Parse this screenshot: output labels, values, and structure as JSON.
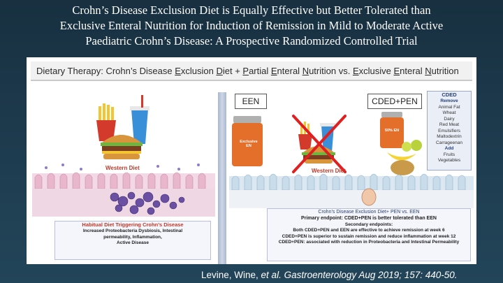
{
  "slide": {
    "title_lines": [
      "Crohn’s Disease Exclusion Diet is Equally Effective but Better Tolerated than",
      "Exclusive Enteral Nutrition for Induction of Remission in Mild to Moderate Active",
      "Paediatric Crohn’s Disease: A Prospective Randomized Controlled Trial"
    ],
    "citation_authors": "Levine, Wine, ",
    "citation_etal": "et al.",
    "citation_journal": " Gastroenterology Aug 2019; 157: 440-50."
  },
  "figure": {
    "header": {
      "p1": "Dietary Therapy: Crohn’s Disease ",
      "e": "E",
      "p2": "xclusion ",
      "d": "D",
      "p3": "iet + ",
      "pp": "P",
      "p4": "artial ",
      "e2": "E",
      "p5": "nteral ",
      "n": "N",
      "p6": "utrition vs. ",
      "e3": "E",
      "p7": "xclusive ",
      "e4": "E",
      "p8": "nteral ",
      "n2": "N",
      "p9": "utrition"
    },
    "western_diet_label": "Western Diet",
    "western_diet_label_crossed": "Western Diet",
    "een_label": "EEN",
    "cded_pen_label": "CDED+PEN",
    "formula_label": "Exclusive EN",
    "pen_jar_label": "50% EN",
    "cded_box": {
      "title": "CDED",
      "remove": "Remove",
      "remove_items": [
        "Animal Fat",
        "Wheat",
        "Dairy",
        "Red Meat",
        "Emulsifiers",
        "Maltodextrin",
        "Carrageenan"
      ],
      "add": "Add",
      "add_items": [
        "Fruits",
        "Vegetables"
      ]
    },
    "habitual_box": {
      "title": "Habitual Diet Triggering Crohn’s Disease",
      "lines": [
        "Increased Proteobacteria Dysbiosis, Intestinal",
        "permeability, Inflammation,",
        "Active Disease"
      ]
    },
    "results_box": {
      "title": "Crohn’s Disease Exclusion Diet+ PEN vs. EEN",
      "primary": "Primary endpoint: CDED+PEN is better tolerated than EEN",
      "secondary_head": "Secondary endpoints:",
      "lines": [
        "Both CDED+PEN and EEN are effective to achieve remission at week 6",
        "CDED+PEN is superior to sustain remission and reduce inflammation at week 12",
        "CDED+PEN: associated with reduction in Proteobacteria and Intestinal Permeability"
      ]
    },
    "colors": {
      "divider": "#a9b8cf",
      "accent_red": "#c03a2b",
      "accent_blue": "#27407a"
    }
  }
}
